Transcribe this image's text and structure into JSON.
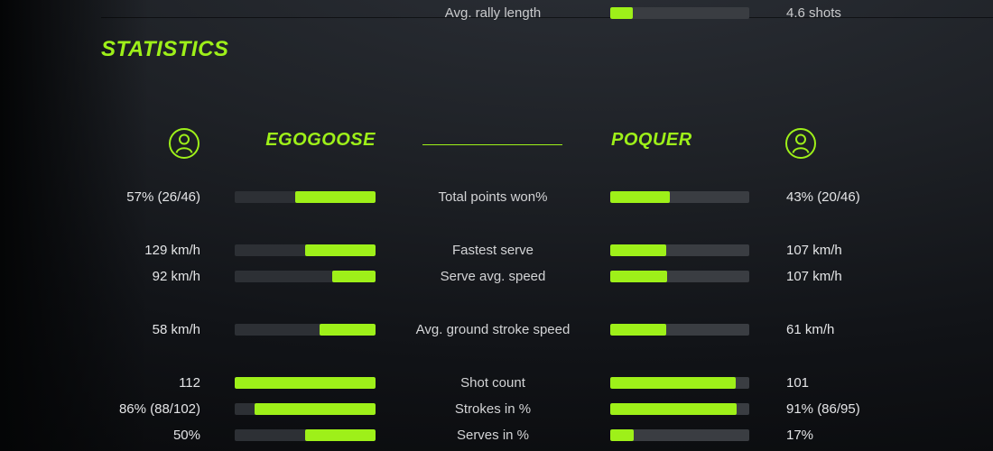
{
  "title": "STATISTICS",
  "colors": {
    "accent": "#9ef019",
    "left_track": "#2d3035",
    "right_track": "#3a3d42"
  },
  "rally": {
    "label": "Avg. rally length",
    "value": "4.6 shots",
    "fill_pct": 16
  },
  "players": {
    "left": {
      "name": "EGOGOOSE",
      "icon": "user-avatar-icon"
    },
    "right": {
      "name": "POQUER",
      "icon": "user-avatar-icon"
    }
  },
  "rows": [
    {
      "label": "Total points won%",
      "spacer_before": false,
      "left": {
        "value": "57% (26/46)",
        "fill_pct": 57
      },
      "right": {
        "value": "43% (20/46)",
        "fill_pct": 43
      }
    },
    {
      "label": "Fastest serve",
      "spacer_before": true,
      "left": {
        "value": "129 km/h",
        "fill_pct": 50
      },
      "right": {
        "value": "107 km/h",
        "fill_pct": 40
      }
    },
    {
      "label": "Serve avg. speed",
      "spacer_before": false,
      "left": {
        "value": "92 km/h",
        "fill_pct": 31
      },
      "right": {
        "value": "107 km/h",
        "fill_pct": 41
      }
    },
    {
      "label": "Avg. ground stroke speed",
      "spacer_before": true,
      "left": {
        "value": "58 km/h",
        "fill_pct": 40
      },
      "right": {
        "value": "61 km/h",
        "fill_pct": 40
      }
    },
    {
      "label": "Shot count",
      "spacer_before": true,
      "left": {
        "value": "112",
        "fill_pct": 100
      },
      "right": {
        "value": "101",
        "fill_pct": 90
      }
    },
    {
      "label": "Strokes in %",
      "spacer_before": false,
      "left": {
        "value": "86% (88/102)",
        "fill_pct": 86
      },
      "right": {
        "value": "91% (86/95)",
        "fill_pct": 91
      }
    },
    {
      "label": "Serves in %",
      "spacer_before": false,
      "left": {
        "value": "50%",
        "fill_pct": 50
      },
      "right": {
        "value": "17%",
        "fill_pct": 17
      }
    }
  ]
}
